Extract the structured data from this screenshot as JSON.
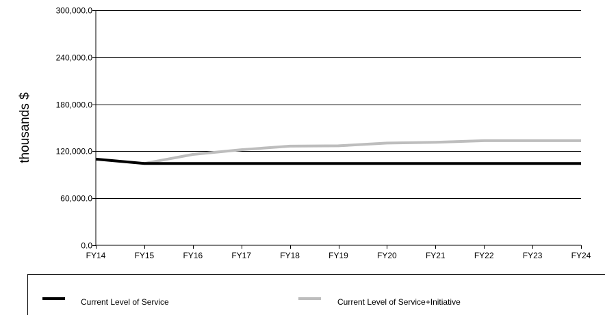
{
  "chart_data": {
    "type": "line",
    "title": "",
    "xlabel": "",
    "ylabel": "thousands $",
    "categories": [
      "FY14",
      "FY15",
      "FY16",
      "FY17",
      "FY18",
      "FY19",
      "FY20",
      "FY21",
      "FY22",
      "FY23",
      "FY24"
    ],
    "y_ticks": [
      "0.0",
      "60,000.0",
      "120,000.0",
      "180,000.0",
      "240,000.0",
      "300,000.0"
    ],
    "ylim": [
      0,
      300000
    ],
    "grid": true,
    "legend_position": "bottom",
    "series": [
      {
        "name": "Current Level of Service",
        "color": "#000000",
        "values": [
          110000,
          104500,
          104500,
          104500,
          104500,
          104500,
          104500,
          104500,
          104500,
          104500,
          104500
        ]
      },
      {
        "name": "Current Level of Service+Initiative",
        "color": "#bdbdbd",
        "values": [
          null,
          104500,
          116000,
          122000,
          126500,
          127000,
          130500,
          131500,
          133500,
          133500,
          133500
        ]
      }
    ]
  }
}
